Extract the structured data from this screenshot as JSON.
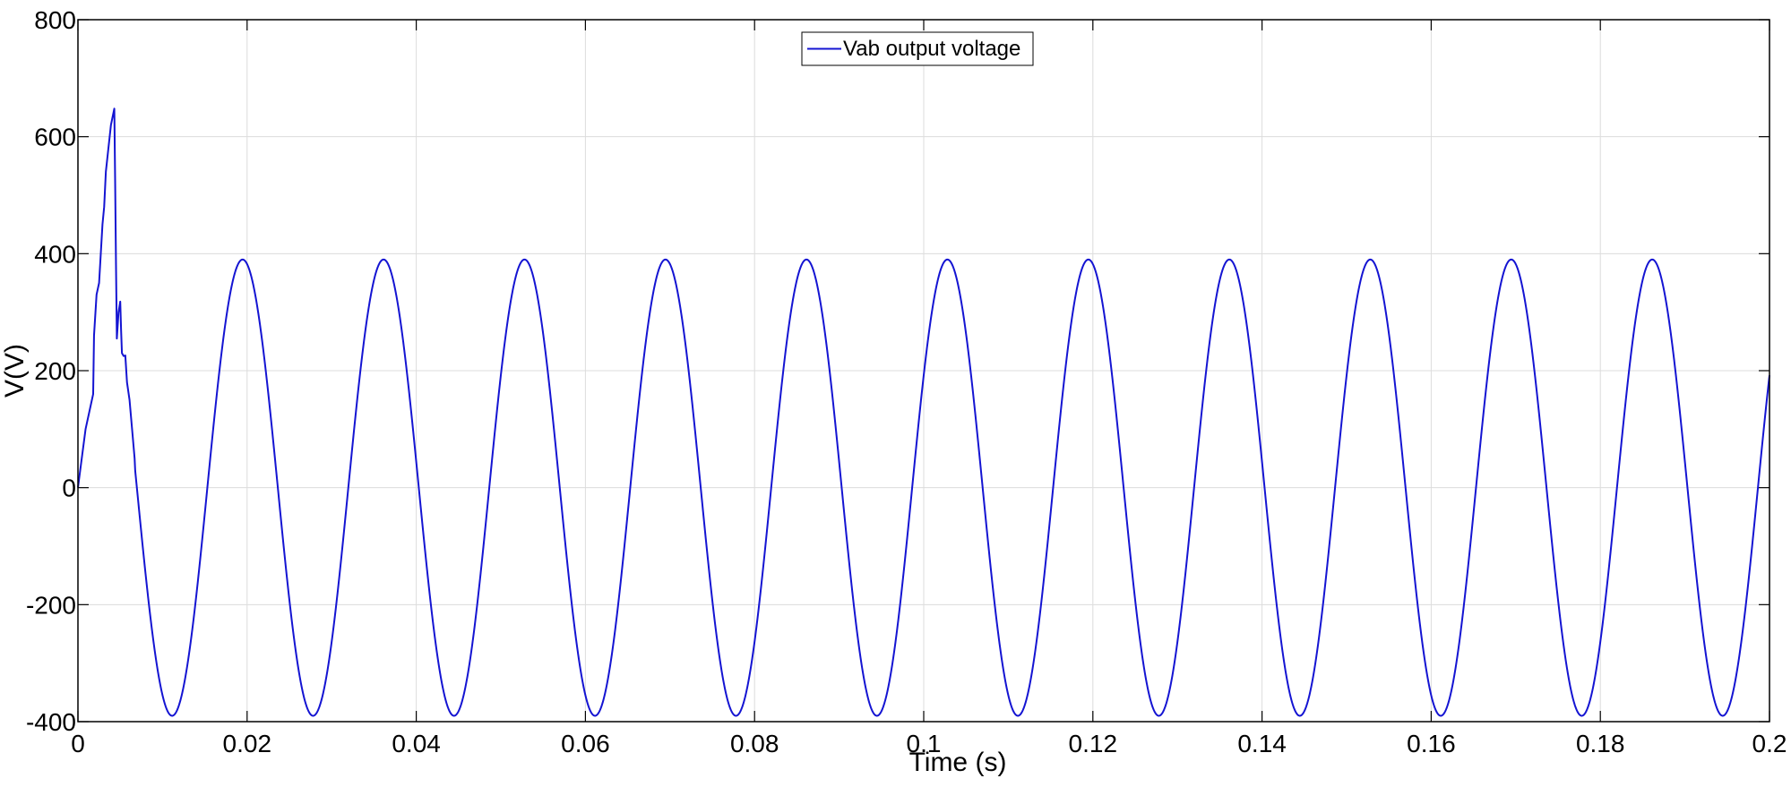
{
  "chart_data": {
    "type": "line",
    "title": "",
    "xlabel": "Time (s)",
    "ylabel": "V(V)",
    "xlim": [
      0,
      0.2
    ],
    "ylim": [
      -400,
      800
    ],
    "grid": true,
    "legend_placement": "top-center",
    "x_ticks": [
      {
        "value": 0,
        "label": "0"
      },
      {
        "value": 0.02,
        "label": "0.02"
      },
      {
        "value": 0.04,
        "label": "0.04"
      },
      {
        "value": 0.06,
        "label": "0.06"
      },
      {
        "value": 0.08,
        "label": "0.08"
      },
      {
        "value": 0.1,
        "label": "0.1"
      },
      {
        "value": 0.12,
        "label": "0.12"
      },
      {
        "value": 0.14,
        "label": "0.14"
      },
      {
        "value": 0.16,
        "label": "0.16"
      },
      {
        "value": 0.18,
        "label": "0.18"
      },
      {
        "value": 0.2,
        "label": "0.2"
      }
    ],
    "y_ticks": [
      {
        "value": 800,
        "label": "800"
      },
      {
        "value": 600,
        "label": "600"
      },
      {
        "value": 400,
        "label": "400"
      },
      {
        "value": 200,
        "label": "200"
      },
      {
        "value": 0,
        "label": "0"
      },
      {
        "value": -200,
        "label": "-200"
      },
      {
        "value": -400,
        "label": "-400"
      }
    ],
    "series": [
      {
        "name": "Vab output voltage",
        "color": "#1414d2",
        "transient": [
          [
            0,
            0
          ],
          [
            0.0009,
            100
          ],
          [
            0.0018,
            160
          ],
          [
            0.0019,
            260
          ],
          [
            0.0022,
            330
          ],
          [
            0.0025,
            350
          ],
          [
            0.0027,
            400
          ],
          [
            0.0029,
            450
          ],
          [
            0.0031,
            480
          ],
          [
            0.0033,
            540
          ],
          [
            0.0036,
            580
          ],
          [
            0.0039,
            620
          ],
          [
            0.0043,
            648
          ],
          [
            0.0044,
            520
          ],
          [
            0.0045,
            380
          ],
          [
            0.0046,
            255
          ],
          [
            0.0048,
            300
          ],
          [
            0.005,
            318
          ],
          [
            0.0051,
            270
          ],
          [
            0.0052,
            230
          ],
          [
            0.0054,
            225
          ],
          [
            0.0056,
            226
          ],
          [
            0.0058,
            180
          ],
          [
            0.0061,
            150
          ],
          [
            0.0064,
            100
          ],
          [
            0.0067,
            50
          ]
        ],
        "steady_state": {
          "amplitude": 390,
          "frequency_hz": 60,
          "zero_crossing_s": 0.0153,
          "t_start": 0.0067,
          "t_end": 0.2
        }
      }
    ]
  }
}
